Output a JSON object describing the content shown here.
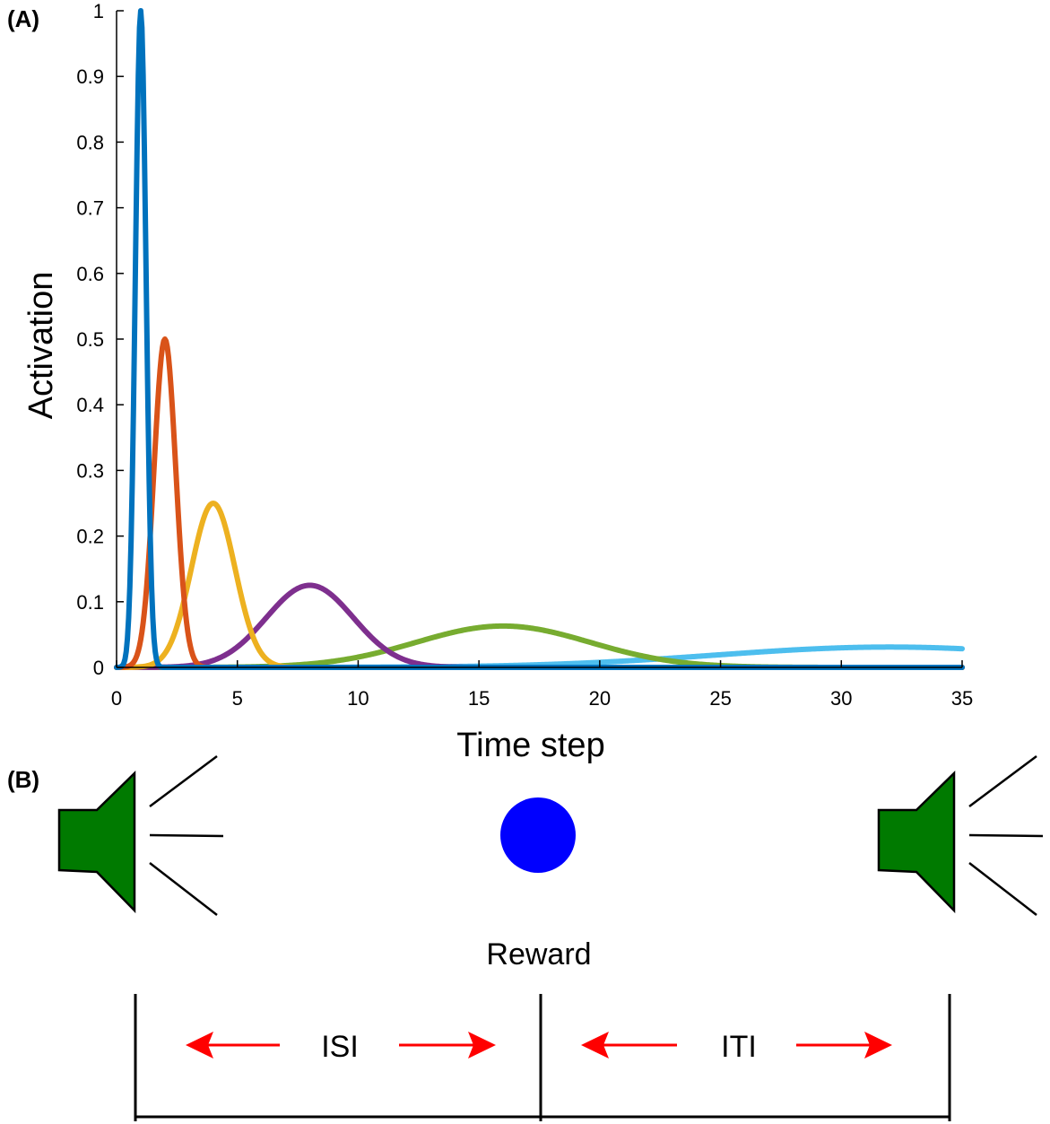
{
  "panel_a": {
    "label": "(A)"
  },
  "panel_b": {
    "label": "(B)",
    "reward_label": "Reward",
    "isi_label": "ISI",
    "iti_label": "ITI",
    "colors": {
      "speaker": "#007a00",
      "reward_dot": "#0000ff",
      "arrow": "#ff0000",
      "line": "#000000"
    }
  },
  "chart_data": {
    "type": "line",
    "title": "",
    "xlabel": "Time step",
    "ylabel": "Activation",
    "xlim": [
      0,
      35
    ],
    "ylim": [
      0,
      1
    ],
    "xticks": [
      0,
      5,
      10,
      15,
      20,
      25,
      30,
      35
    ],
    "yticks": [
      0,
      0.1,
      0.2,
      0.3,
      0.4,
      0.5,
      0.6,
      0.7,
      0.8,
      0.9,
      1
    ],
    "ytick_labels": [
      "0",
      "0.1",
      "0.2",
      "0.3",
      "0.4",
      "0.5",
      "0.6",
      "0.7",
      "0.8",
      "0.9",
      "1"
    ],
    "grid": false,
    "legend": "none",
    "series": [
      {
        "color": "#0072bd",
        "peak_x": 1,
        "peak_y": 1.0,
        "sigma": 0.22
      },
      {
        "color": "#d95319",
        "peak_x": 2,
        "peak_y": 0.5,
        "sigma": 0.45
      },
      {
        "color": "#edb120",
        "peak_x": 4,
        "peak_y": 0.25,
        "sigma": 0.9
      },
      {
        "color": "#7e2f8e",
        "peak_x": 8,
        "peak_y": 0.125,
        "sigma": 1.8
      },
      {
        "color": "#77ac30",
        "peak_x": 16,
        "peak_y": 0.063,
        "sigma": 3.6
      },
      {
        "color": "#4dbeee",
        "peak_x": 32,
        "peak_y": 0.031,
        "sigma": 7.2
      }
    ]
  }
}
